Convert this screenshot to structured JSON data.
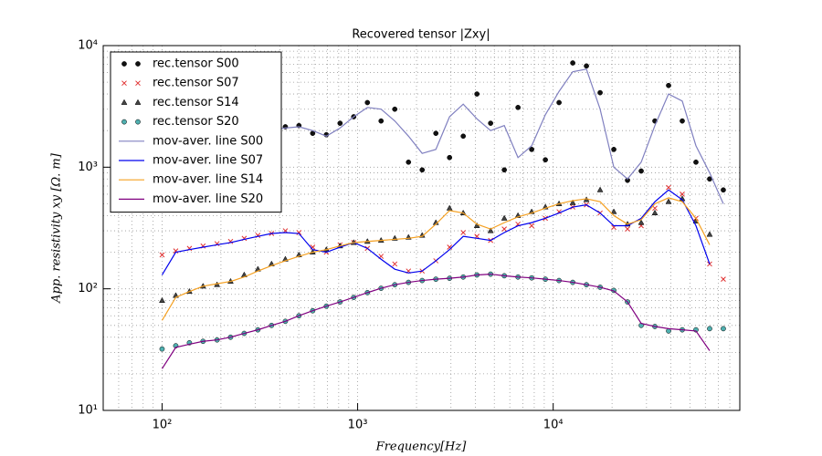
{
  "chart_data": {
    "type": "scatter",
    "title": "Recovered tensor |Zxy|",
    "x_label": "Frequency[Hz]",
    "y_label": "App. resistivity   xy   [Ω. m]",
    "x_scale": "log",
    "y_scale": "log",
    "xlim": [
      50,
      90000
    ],
    "ylim": [
      10,
      10000
    ],
    "xticks": [
      {
        "value": 100,
        "label": "10²"
      },
      {
        "value": 1000,
        "label": "10³"
      },
      {
        "value": 10000,
        "label": "10⁴"
      }
    ],
    "yticks": [
      {
        "value": 10,
        "label": "10¹"
      },
      {
        "value": 100,
        "label": "10²"
      },
      {
        "value": 1000,
        "label": "10³"
      },
      {
        "value": 10000,
        "label": "10⁴"
      }
    ],
    "grid": true,
    "legend": "upper left",
    "x": [
      100,
      117.5,
      138,
      162,
      191,
      224,
      263,
      309,
      363,
      427,
      501,
      589,
      692,
      813,
      955,
      1122,
      1318,
      1549,
      1820,
      2138,
      2512,
      2951,
      3467,
      4074,
      4786,
      5623,
      6607,
      7762,
      9120,
      10715,
      12589,
      14791,
      17378,
      20417,
      23988,
      28184,
      33113,
      38905,
      45709,
      53703,
      63096,
      74131
    ],
    "series": [
      {
        "name": "rec.tensor S00",
        "kind": "points",
        "marker": "o",
        "color": "#111111",
        "values": [
          null,
          null,
          null,
          null,
          null,
          null,
          null,
          null,
          2100,
          2150,
          2200,
          1900,
          1850,
          2300,
          2600,
          3400,
          2400,
          3000,
          1100,
          950,
          1900,
          1200,
          1800,
          4000,
          2300,
          950,
          3100,
          1400,
          1150,
          3400,
          7200,
          6800,
          4100,
          1400,
          780,
          930,
          2400,
          4700,
          2400,
          1100,
          800,
          650
        ]
      },
      {
        "name": "rec.tensor S07",
        "kind": "points",
        "marker": "x",
        "color": "#e03030",
        "values": [
          190,
          205,
          215,
          225,
          235,
          245,
          260,
          275,
          285,
          300,
          290,
          220,
          200,
          230,
          240,
          215,
          185,
          160,
          140,
          140,
          170,
          220,
          290,
          270,
          250,
          310,
          340,
          330,
          380,
          430,
          470,
          490,
          420,
          320,
          310,
          330,
          460,
          680,
          600,
          380,
          160,
          120
        ]
      },
      {
        "name": "rec.tensor S14",
        "kind": "points",
        "marker": "^",
        "color": "#444444",
        "values": [
          80,
          88,
          95,
          105,
          108,
          115,
          130,
          145,
          160,
          175,
          190,
          200,
          210,
          225,
          240,
          245,
          250,
          260,
          265,
          275,
          350,
          460,
          420,
          330,
          300,
          380,
          400,
          430,
          470,
          500,
          510,
          540,
          650,
          430,
          340,
          350,
          420,
          520,
          550,
          360,
          280,
          null
        ]
      },
      {
        "name": "rec.tensor S20",
        "kind": "points",
        "marker": "o",
        "color": "#4fb0b0",
        "values": [
          32,
          34,
          36,
          37,
          38,
          40,
          43,
          46,
          50,
          54,
          60,
          66,
          72,
          78,
          85,
          93,
          101,
          108,
          113,
          117,
          120,
          122,
          125,
          130,
          132,
          128,
          125,
          123,
          120,
          117,
          113,
          108,
          103,
          97,
          78,
          50,
          49,
          45,
          46,
          46,
          47,
          47
        ]
      },
      {
        "name": "mov-aver. line S00",
        "kind": "line",
        "color": "#8080c0",
        "values": [
          null,
          null,
          null,
          null,
          null,
          null,
          null,
          null,
          2050,
          2100,
          2150,
          2000,
          1800,
          2100,
          2600,
          3100,
          3000,
          2400,
          1800,
          1300,
          1400,
          2600,
          3300,
          2500,
          2000,
          2200,
          1200,
          1500,
          2700,
          4200,
          6100,
          6400,
          3000,
          1000,
          800,
          1100,
          2200,
          4000,
          3500,
          1500,
          900,
          500
        ]
      },
      {
        "name": "mov-aver. line S07",
        "kind": "line",
        "color": "#0000ee",
        "values": [
          130,
          200,
          210,
          220,
          230,
          240,
          255,
          270,
          285,
          290,
          285,
          210,
          200,
          220,
          240,
          215,
          175,
          145,
          135,
          140,
          170,
          210,
          270,
          260,
          250,
          290,
          330,
          350,
          380,
          420,
          470,
          490,
          420,
          330,
          330,
          380,
          520,
          650,
          540,
          330,
          160,
          null
        ]
      },
      {
        "name": "mov-aver. line S14",
        "kind": "line",
        "color": "#f5a020",
        "values": [
          55,
          85,
          95,
          105,
          110,
          115,
          125,
          140,
          155,
          170,
          185,
          200,
          210,
          225,
          240,
          245,
          250,
          255,
          260,
          270,
          340,
          440,
          420,
          340,
          310,
          350,
          390,
          420,
          460,
          500,
          530,
          550,
          520,
          400,
          340,
          370,
          500,
          560,
          520,
          380,
          230,
          null
        ]
      },
      {
        "name": "mov-aver. line S20",
        "kind": "line",
        "color": "#800080",
        "values": [
          22,
          33,
          35,
          37,
          38,
          40,
          43,
          46,
          50,
          54,
          60,
          66,
          72,
          78,
          85,
          93,
          101,
          108,
          113,
          117,
          120,
          122,
          125,
          130,
          132,
          128,
          125,
          123,
          120,
          117,
          113,
          108,
          103,
          96,
          78,
          52,
          49,
          47,
          46,
          45,
          31,
          null
        ]
      }
    ]
  }
}
